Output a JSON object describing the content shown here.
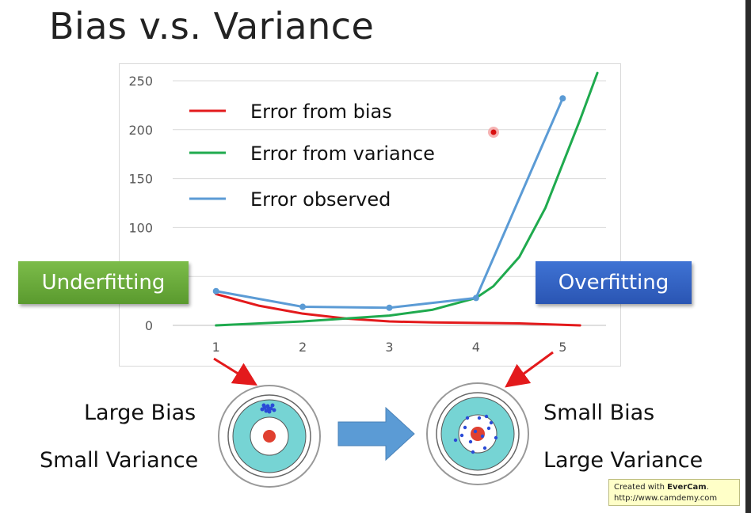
{
  "slide": {
    "title": "Bias v.s. Variance",
    "underfitting_label": "Underfitting",
    "overfitting_label": "Overfitting",
    "left_target_labels": [
      "Large Bias",
      "Small Variance"
    ],
    "right_target_labels": [
      "Small Bias",
      "Large Variance"
    ]
  },
  "watermark": {
    "line1_prefix": "Created with ",
    "brand": "EverCam",
    "line1_suffix": ".",
    "line2": "http://www.camdemy.com"
  },
  "chart_data": {
    "type": "line",
    "x": [
      1,
      2,
      3,
      4,
      5
    ],
    "yticks": [
      0,
      50,
      100,
      150,
      200,
      250
    ],
    "ytick_labels": [
      "0",
      "",
      "100",
      "150",
      "200",
      "250"
    ],
    "xtick_labels": [
      "1",
      "2",
      "3",
      "4",
      "5"
    ],
    "ylim": [
      0,
      250
    ],
    "grid": true,
    "legend_position": "top-left",
    "series": [
      {
        "name": "Error from bias",
        "color": "#e31a1c",
        "x": [
          1,
          1.5,
          2,
          2.5,
          3,
          3.5,
          4,
          4.5,
          5.2
        ],
        "y": [
          32,
          20,
          12,
          7,
          4,
          3,
          2.5,
          2,
          0
        ]
      },
      {
        "name": "Error from variance",
        "color": "#1faa4e",
        "x": [
          1,
          2,
          3,
          3.5,
          4,
          4.2,
          4.5,
          4.8,
          5,
          5.2,
          5.4
        ],
        "y": [
          0,
          4,
          10,
          16,
          28,
          40,
          70,
          120,
          165,
          210,
          258
        ]
      },
      {
        "name": "Error observed",
        "color": "#5b9bd5",
        "x": [
          1,
          2,
          3,
          4,
          5
        ],
        "y": [
          35,
          19,
          18,
          28,
          232
        ]
      }
    ]
  }
}
